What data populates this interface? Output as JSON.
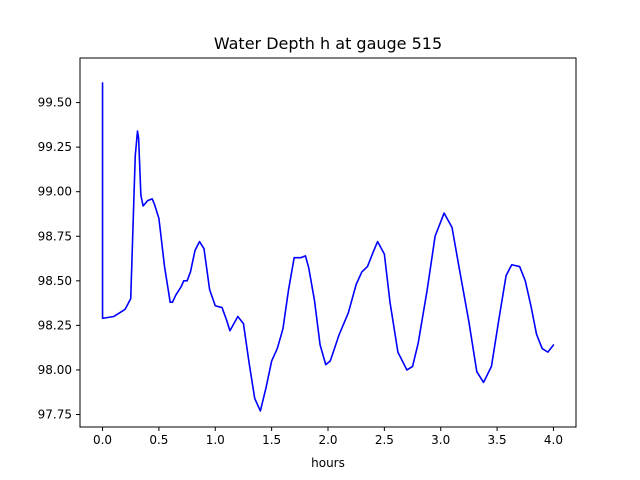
{
  "chart_data": {
    "type": "line",
    "title": "Water Depth h at gauge 515",
    "xlabel": "hours",
    "ylabel": "",
    "xlim": [
      -0.2,
      4.2
    ],
    "ylim": [
      97.68,
      99.75
    ],
    "xticks": [
      0.0,
      0.5,
      1.0,
      1.5,
      2.0,
      2.5,
      3.0,
      3.5,
      4.0
    ],
    "xtick_labels": [
      "0.0",
      "0.5",
      "1.0",
      "1.5",
      "2.0",
      "2.5",
      "3.0",
      "3.5",
      "4.0"
    ],
    "yticks": [
      97.75,
      98.0,
      98.25,
      98.5,
      98.75,
      99.0,
      99.25,
      99.5
    ],
    "ytick_labels": [
      "97.75",
      "98.00",
      "98.25",
      "98.50",
      "98.75",
      "99.00",
      "99.25",
      "99.50"
    ],
    "grid": false,
    "series": [
      {
        "color": "#0000ff",
        "x": [
          0.0,
          0.0,
          0.005,
          0.1,
          0.15,
          0.2,
          0.25,
          0.275,
          0.29,
          0.31,
          0.32,
          0.34,
          0.36,
          0.4,
          0.44,
          0.46,
          0.5,
          0.55,
          0.6,
          0.62,
          0.65,
          0.7,
          0.72,
          0.75,
          0.78,
          0.82,
          0.86,
          0.9,
          0.95,
          1.0,
          1.06,
          1.1,
          1.13,
          1.2,
          1.25,
          1.3,
          1.35,
          1.4,
          1.45,
          1.5,
          1.55,
          1.6,
          1.65,
          1.7,
          1.73,
          1.76,
          1.8,
          1.83,
          1.88,
          1.93,
          1.98,
          2.02,
          2.1,
          2.18,
          2.25,
          2.3,
          2.35,
          2.4,
          2.44,
          2.5,
          2.55,
          2.62,
          2.7,
          2.75,
          2.8,
          2.88,
          2.95,
          3.03,
          3.1,
          3.17,
          3.25,
          3.32,
          3.38,
          3.45,
          3.52,
          3.58,
          3.63,
          3.7,
          3.75,
          3.8,
          3.85,
          3.9,
          3.95,
          4.0
        ],
        "y": [
          99.61,
          98.29,
          98.29,
          98.3,
          98.32,
          98.34,
          98.4,
          98.9,
          99.2,
          99.34,
          99.3,
          98.98,
          98.92,
          98.95,
          98.96,
          98.93,
          98.85,
          98.58,
          98.38,
          98.38,
          98.42,
          98.47,
          98.5,
          98.5,
          98.55,
          98.67,
          98.72,
          98.68,
          98.45,
          98.36,
          98.35,
          98.28,
          98.22,
          98.3,
          98.26,
          98.04,
          97.84,
          97.77,
          97.9,
          98.05,
          98.12,
          98.23,
          98.45,
          98.63,
          98.63,
          98.63,
          98.64,
          98.57,
          98.39,
          98.14,
          98.03,
          98.05,
          98.2,
          98.32,
          98.48,
          98.55,
          98.58,
          98.66,
          98.72,
          98.65,
          98.38,
          98.1,
          98.0,
          98.02,
          98.15,
          98.45,
          98.75,
          98.88,
          98.8,
          98.55,
          98.27,
          97.99,
          97.93,
          98.02,
          98.3,
          98.53,
          98.59,
          98.58,
          98.5,
          98.36,
          98.2,
          98.12,
          98.1,
          98.14
        ]
      }
    ]
  }
}
